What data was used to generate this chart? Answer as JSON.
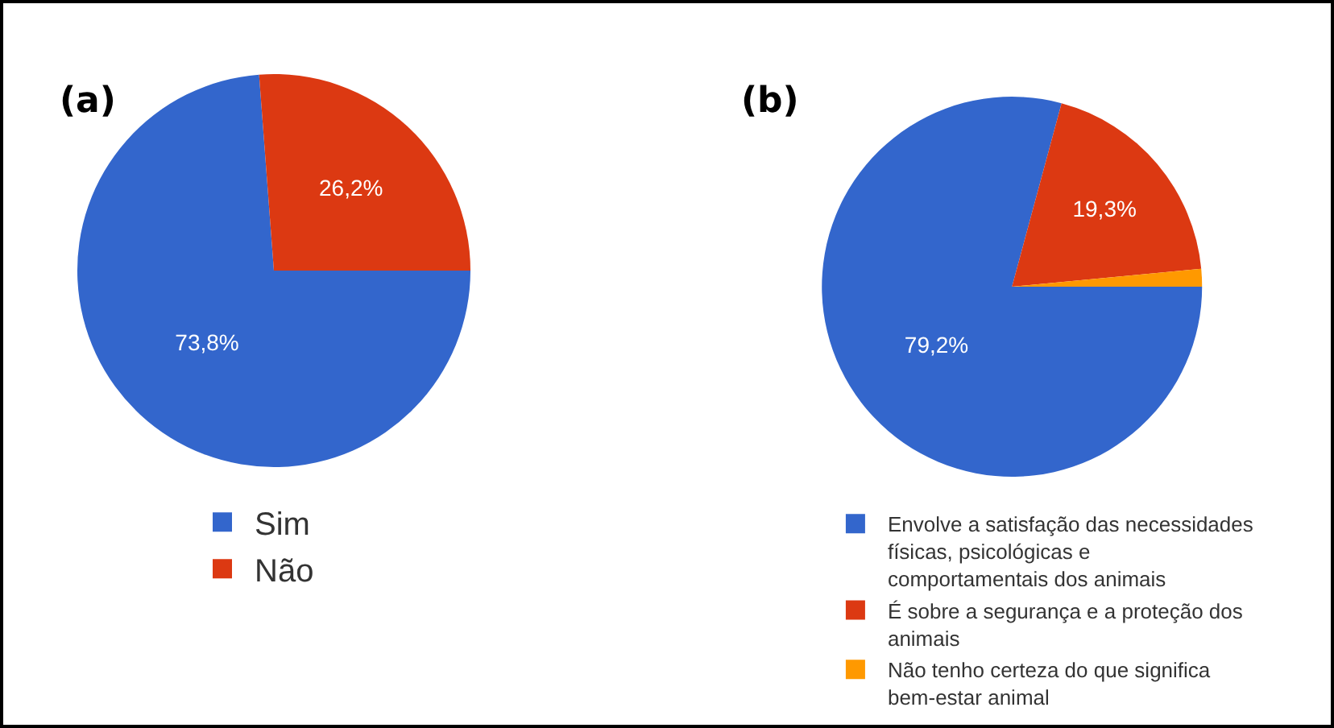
{
  "chart_data": [
    {
      "type": "pie",
      "title": "(a)",
      "categories": [
        "Sim",
        "Não"
      ],
      "values": [
        73.8,
        26.2
      ],
      "colors": [
        "#3366cc",
        "#dc3912"
      ],
      "value_labels": [
        "73,8%",
        "26,2%"
      ],
      "legend": "bottom"
    },
    {
      "type": "pie",
      "title": "(b)",
      "categories": [
        "Envolve a satisfação das necessidades físicas, psicológicas e comportamentais dos animais",
        "É sobre a segurança e a proteção dos animais",
        "Não tenho certeza do que significa bem-estar animal"
      ],
      "values": [
        79.2,
        19.3,
        1.5
      ],
      "colors": [
        "#3366cc",
        "#dc3912",
        "#ff9900"
      ],
      "value_labels": [
        "79,2%",
        "19,3%",
        null
      ],
      "legend": "bottom"
    }
  ]
}
